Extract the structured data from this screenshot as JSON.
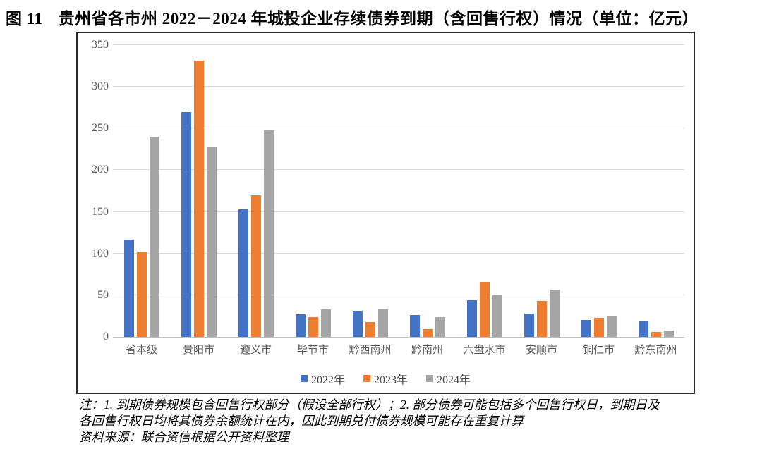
{
  "figure": {
    "label": "图 11",
    "title": "贵州省各市州 2022－2024 年城投企业存续债券到期（含回售行权）情况（单位：亿元）"
  },
  "notes": [
    "注：1. 到期债券规模包含回售行权部分（假设全部行权）；2. 部分债券可能包括多个回售行权日，到期日及",
    "各回售行权日均将其债券余额统计在内，因此到期兑付债券规模可能存在重复计算",
    "资料来源：联合资信根据公开资料整理"
  ],
  "chart_data": {
    "type": "bar",
    "title": "贵州省各市州 2022－2024 年城投企业存续债券到期（含回售行权）情况",
    "unit": "亿元",
    "categories": [
      "省本级",
      "贵阳市",
      "遵义市",
      "毕节市",
      "黔西南州",
      "黔南州",
      "六盘水市",
      "安顺市",
      "铜仁市",
      "黔东南州"
    ],
    "series": [
      {
        "name": "2022年",
        "color": "#4472C4",
        "values": [
          117,
          270,
          153,
          27,
          31,
          26,
          44,
          28,
          20,
          19
        ]
      },
      {
        "name": "2023年",
        "color": "#ED7D31",
        "values": [
          102,
          331,
          170,
          24,
          18,
          9,
          66,
          43,
          23,
          6
        ]
      },
      {
        "name": "2024年",
        "color": "#A5A5A5",
        "values": [
          240,
          228,
          248,
          33,
          34,
          24,
          51,
          57,
          25,
          8
        ]
      }
    ],
    "xlabel": "",
    "ylabel": "",
    "ylim": [
      0,
      350
    ],
    "yticks": [
      0,
      50,
      100,
      150,
      200,
      250,
      300,
      350
    ],
    "grid": true,
    "legend_position": "bottom"
  },
  "colors": {
    "grid": "#D9D9D9",
    "axis_line": "#BFBFBF",
    "axis_text": "#595959",
    "frame_border": "#2B2B2B"
  }
}
